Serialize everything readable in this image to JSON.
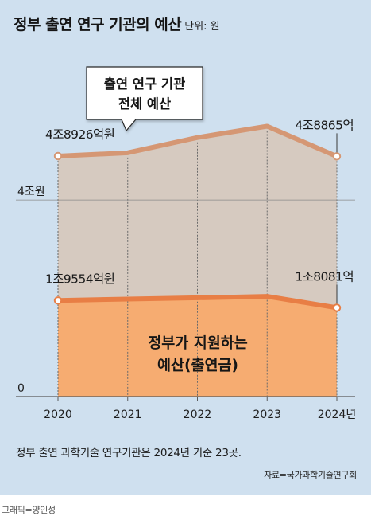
{
  "header": {
    "title": "정부 출연 연구 기관의 예산",
    "unit": "단위: 원"
  },
  "chart_data": {
    "type": "area",
    "x": [
      "2020",
      "2021",
      "2022",
      "2023",
      "2024년"
    ],
    "series": [
      {
        "name": "출연 연구 기관 전체 예산",
        "values": [
          4.8926,
          4.96,
          5.27,
          5.5,
          4.8865
        ],
        "color": "#d59774",
        "fill": "#d6cac0"
      },
      {
        "name": "정부가 지원하는 예산(출연금)",
        "values": [
          1.9554,
          1.985,
          2.01,
          2.04,
          1.8081
        ],
        "color": "#e87e45",
        "fill": "#f6ac71"
      }
    ],
    "ylim": [
      0,
      5.8
    ],
    "yticks": [
      {
        "value": 0,
        "label": "0"
      },
      {
        "value": 4,
        "label": "4조원"
      }
    ],
    "data_labels": [
      {
        "series": 0,
        "index": 0,
        "text": "4조8926억원"
      },
      {
        "series": 0,
        "index": 4,
        "text": "4조8865억"
      },
      {
        "series": 1,
        "index": 0,
        "text": "1조9554억원"
      },
      {
        "series": 1,
        "index": 4,
        "text": "1조8081억"
      }
    ],
    "callout": {
      "line1": "출연 연구 기관",
      "line2": "전체 예산"
    },
    "inner_label": {
      "line1": "정부가 지원하는",
      "line2": "예산(출연금)"
    },
    "grid": false
  },
  "footer": {
    "note": "정부 출연 과학기술 연구기관은 2024년 기준 23곳.",
    "source": "자료=국가과학기술연구회",
    "credit": "그래픽=양인성"
  },
  "colors": {
    "background": "#cfe0ef",
    "total_line": "#d59774",
    "total_fill": "#d6cac0",
    "funding_line": "#e87e45",
    "funding_fill": "#f6ac71"
  }
}
